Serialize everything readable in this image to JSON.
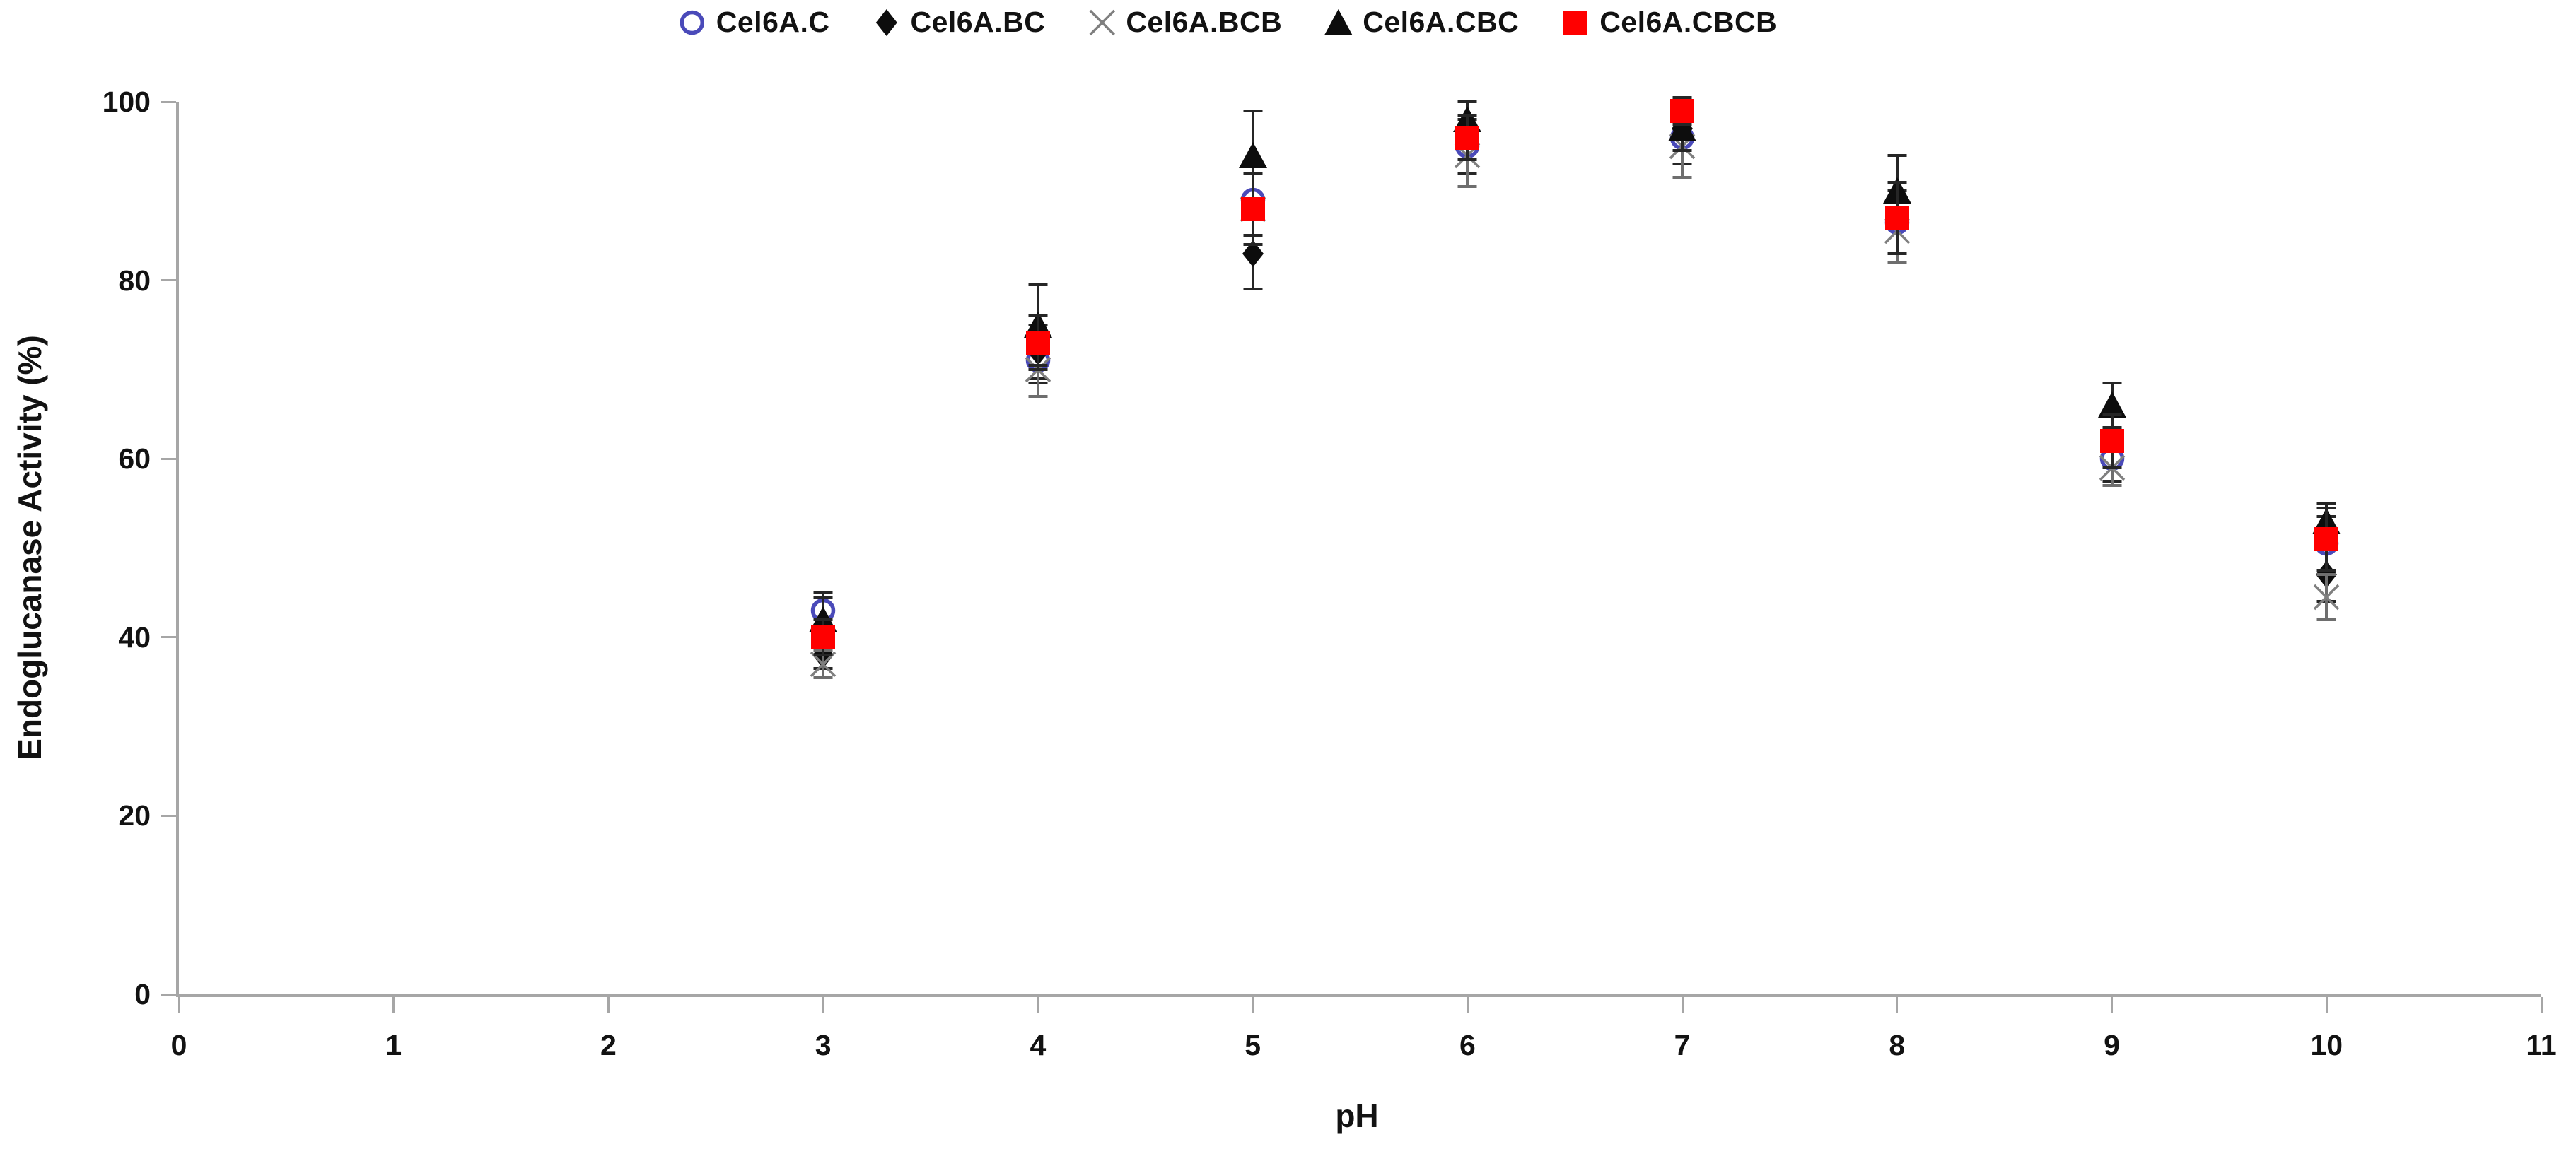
{
  "chart_data": {
    "type": "scatter",
    "title": "",
    "xlabel": "pH",
    "ylabel": "Endoglucanase Activity (%)",
    "xlim": [
      0,
      11
    ],
    "ylim": [
      0,
      100
    ],
    "x_ticks": [
      0,
      1,
      2,
      3,
      4,
      5,
      6,
      7,
      8,
      9,
      10,
      11
    ],
    "y_ticks": [
      0,
      20,
      40,
      60,
      80,
      100
    ],
    "grid": false,
    "legend_position": "top-center",
    "axis_color": "#a6a6a6",
    "x": [
      3,
      4,
      5,
      6,
      7,
      8,
      9,
      10
    ],
    "series": [
      {
        "name": "Cel6A.C",
        "marker": "open-circle",
        "color": "#4a4ab9",
        "error_color": "#262626",
        "values": [
          43,
          71,
          89,
          95,
          96,
          86.5,
          60,
          50.5
        ],
        "errors": [
          2,
          2.5,
          4,
          3,
          3,
          3.5,
          2.5,
          3
        ]
      },
      {
        "name": "Cel6A.BC",
        "marker": "diamond",
        "color": "#0d0d0d",
        "error_color": "#262626",
        "values": [
          38,
          72,
          83,
          96,
          97,
          87,
          62,
          47
        ],
        "errors": [
          1.5,
          3,
          4,
          2.5,
          2.5,
          4,
          3,
          3
        ]
      },
      {
        "name": "Cel6A.BCB",
        "marker": "x-cross",
        "color": "#7f7f7f",
        "error_color": "#6e6e6e",
        "values": [
          37,
          70,
          88,
          94,
          95,
          85.5,
          59,
          44.5
        ],
        "errors": [
          1.5,
          3,
          4,
          3.5,
          3.5,
          3.5,
          2,
          2.5
        ]
      },
      {
        "name": "Cel6A.CBC",
        "marker": "triangle",
        "color": "#0d0d0d",
        "error_color": "#262626",
        "values": [
          42,
          75,
          94,
          98,
          97,
          90,
          66,
          53
        ],
        "errors": [
          2.5,
          4.5,
          5,
          2,
          2.5,
          4,
          2.5,
          2
        ]
      },
      {
        "name": "Cel6A.CBCB",
        "marker": "square",
        "color": "#ff0000",
        "error_color": "#262626",
        "values": [
          40,
          73,
          88,
          96,
          99,
          87,
          62,
          51
        ],
        "errors": [
          2,
          3,
          4,
          2.5,
          1.5,
          4,
          3,
          3.5
        ]
      }
    ]
  }
}
